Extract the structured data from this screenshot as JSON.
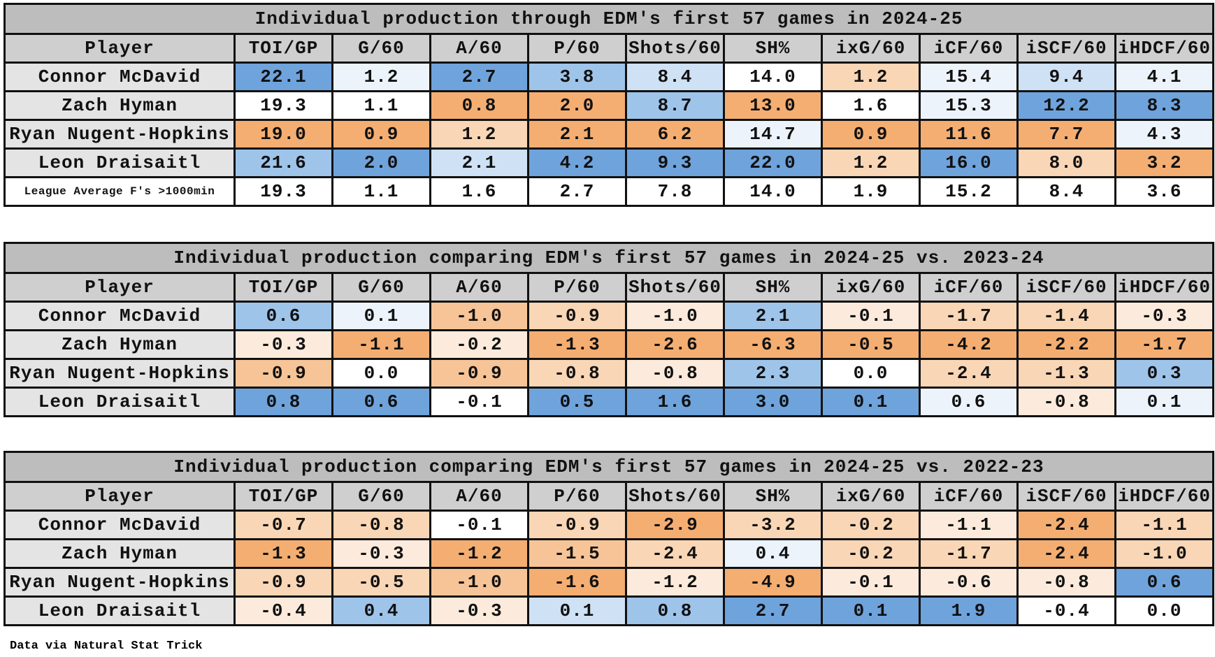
{
  "tables": [
    {
      "title": "Individual production through EDM's first 57 games in 2024-25",
      "columns": [
        "Player",
        "TOI/GP",
        "G/60",
        "A/60",
        "P/60",
        "Shots/60",
        "SH%",
        "ixG/60",
        "iCF/60",
        "iSCF/60",
        "iHDCF/60"
      ],
      "rows": [
        {
          "player": "Connor McDavid",
          "values": [
            "22.1",
            "1.2",
            "2.7",
            "3.8",
            "8.4",
            "14.0",
            "1.2",
            "15.4",
            "9.4",
            "4.1"
          ],
          "colors": [
            "#6fa3dc",
            "#ecf3fb",
            "#6fa3dc",
            "#9fc4ea",
            "#cfe1f4",
            "#ffffff",
            "#f9d6b5",
            "#ecf3fb",
            "#cfe1f4",
            "#ecf3fb"
          ]
        },
        {
          "player": "Zach Hyman",
          "values": [
            "19.3",
            "1.1",
            "0.8",
            "2.0",
            "8.7",
            "13.0",
            "1.6",
            "15.3",
            "12.2",
            "8.3"
          ],
          "colors": [
            "#ffffff",
            "#ffffff",
            "#f4ae72",
            "#f4ae72",
            "#9fc4ea",
            "#f4ae72",
            "#ffffff",
            "#ecf3fb",
            "#6fa3dc",
            "#6fa3dc"
          ]
        },
        {
          "player": "Ryan Nugent-Hopkins",
          "values": [
            "19.0",
            "0.9",
            "1.2",
            "2.1",
            "6.2",
            "14.7",
            "0.9",
            "11.6",
            "7.7",
            "4.3"
          ],
          "colors": [
            "#f4ae72",
            "#f4ae72",
            "#f9d6b5",
            "#f4ae72",
            "#f4ae72",
            "#ecf3fb",
            "#f4ae72",
            "#f4ae72",
            "#f4ae72",
            "#ecf3fb"
          ]
        },
        {
          "player": "Leon Draisaitl",
          "values": [
            "21.6",
            "2.0",
            "2.1",
            "4.2",
            "9.3",
            "22.0",
            "1.2",
            "16.0",
            "8.0",
            "3.2"
          ],
          "colors": [
            "#9fc4ea",
            "#6fa3dc",
            "#cfe1f4",
            "#6fa3dc",
            "#6fa3dc",
            "#6fa3dc",
            "#f9d6b5",
            "#6fa3dc",
            "#f9d6b5",
            "#f4ae72"
          ]
        },
        {
          "player": "League Average F's >1000min",
          "values": [
            "19.3",
            "1.1",
            "1.6",
            "2.7",
            "7.8",
            "14.0",
            "1.9",
            "15.2",
            "8.4",
            "3.6"
          ],
          "colors": [
            "#ffffff",
            "#ffffff",
            "#ffffff",
            "#ffffff",
            "#ffffff",
            "#ffffff",
            "#ffffff",
            "#ffffff",
            "#ffffff",
            "#ffffff"
          ]
        }
      ]
    },
    {
      "title": "Individual production comparing EDM's first 57 games in 2024-25 vs. 2023-24",
      "columns": [
        "Player",
        "TOI/GP",
        "G/60",
        "A/60",
        "P/60",
        "Shots/60",
        "SH%",
        "ixG/60",
        "iCF/60",
        "iSCF/60",
        "iHDCF/60"
      ],
      "rows": [
        {
          "player": "Connor McDavid",
          "values": [
            "0.6",
            "0.1",
            "-1.0",
            "-0.9",
            "-1.0",
            "2.1",
            "-0.1",
            "-1.7",
            "-1.4",
            "-0.3"
          ],
          "colors": [
            "#9fc4ea",
            "#ecf3fb",
            "#f6c497",
            "#f9d6b5",
            "#fcebdc",
            "#9fc4ea",
            "#fcebdc",
            "#f9d6b5",
            "#f9d6b5",
            "#fcebdc"
          ]
        },
        {
          "player": "Zach Hyman",
          "values": [
            "-0.3",
            "-1.1",
            "-0.2",
            "-1.3",
            "-2.6",
            "-6.3",
            "-0.5",
            "-4.2",
            "-2.2",
            "-1.7"
          ],
          "colors": [
            "#fcebdc",
            "#f4ae72",
            "#fcebdc",
            "#f4ae72",
            "#f4ae72",
            "#f4ae72",
            "#f4ae72",
            "#f4ae72",
            "#f4ae72",
            "#f4ae72"
          ]
        },
        {
          "player": "Ryan Nugent-Hopkins",
          "values": [
            "-0.9",
            "0.0",
            "-0.9",
            "-0.8",
            "-0.8",
            "2.3",
            "0.0",
            "-2.4",
            "-1.3",
            "0.3"
          ],
          "colors": [
            "#f6c497",
            "#ffffff",
            "#f6c497",
            "#f9d6b5",
            "#fcebdc",
            "#9fc4ea",
            "#ffffff",
            "#f9d6b5",
            "#f9d6b5",
            "#9fc4ea"
          ]
        },
        {
          "player": "Leon Draisaitl",
          "values": [
            "0.8",
            "0.6",
            "-0.1",
            "0.5",
            "1.6",
            "3.0",
            "0.1",
            "0.6",
            "-0.8",
            "0.1"
          ],
          "colors": [
            "#6fa3dc",
            "#6fa3dc",
            "#ffffff",
            "#6fa3dc",
            "#6fa3dc",
            "#6fa3dc",
            "#6fa3dc",
            "#ecf3fb",
            "#fcebdc",
            "#ecf3fb"
          ]
        }
      ]
    },
    {
      "title": "Individual production comparing EDM's first 57 games in 2024-25 vs. 2022-23",
      "columns": [
        "Player",
        "TOI/GP",
        "G/60",
        "A/60",
        "P/60",
        "Shots/60",
        "SH%",
        "ixG/60",
        "iCF/60",
        "iSCF/60",
        "iHDCF/60"
      ],
      "rows": [
        {
          "player": "Connor McDavid",
          "values": [
            "-0.7",
            "-0.8",
            "-0.1",
            "-0.9",
            "-2.9",
            "-3.2",
            "-0.2",
            "-1.1",
            "-2.4",
            "-1.1"
          ],
          "colors": [
            "#f9d6b5",
            "#f9d6b5",
            "#ffffff",
            "#f9d6b5",
            "#f4ae72",
            "#f9d6b5",
            "#f9d6b5",
            "#fcebdc",
            "#f4ae72",
            "#f9d6b5"
          ]
        },
        {
          "player": "Zach Hyman",
          "values": [
            "-1.3",
            "-0.3",
            "-1.2",
            "-1.5",
            "-2.4",
            "0.4",
            "-0.2",
            "-1.7",
            "-2.4",
            "-1.0"
          ],
          "colors": [
            "#f4ae72",
            "#fcebdc",
            "#f4ae72",
            "#f6c497",
            "#f9d6b5",
            "#ecf3fb",
            "#f9d6b5",
            "#f9d6b5",
            "#f4ae72",
            "#f9d6b5"
          ]
        },
        {
          "player": "Ryan Nugent-Hopkins",
          "values": [
            "-0.9",
            "-0.5",
            "-1.0",
            "-1.6",
            "-1.2",
            "-4.9",
            "-0.1",
            "-0.6",
            "-0.8",
            "0.6"
          ],
          "colors": [
            "#f9d6b5",
            "#f9d6b5",
            "#f6c497",
            "#f4ae72",
            "#fcebdc",
            "#f4ae72",
            "#fcebdc",
            "#fcebdc",
            "#fcebdc",
            "#6fa3dc"
          ]
        },
        {
          "player": "Leon Draisaitl",
          "values": [
            "-0.4",
            "0.4",
            "-0.3",
            "0.1",
            "0.8",
            "2.7",
            "0.1",
            "1.9",
            "-0.4",
            "0.0"
          ],
          "colors": [
            "#fcebdc",
            "#9fc4ea",
            "#fcebdc",
            "#cfe1f4",
            "#9fc4ea",
            "#6fa3dc",
            "#6fa3dc",
            "#6fa3dc",
            "#ffffff",
            "#ffffff"
          ]
        }
      ]
    }
  ],
  "footer": "Data via Natural Stat Trick"
}
